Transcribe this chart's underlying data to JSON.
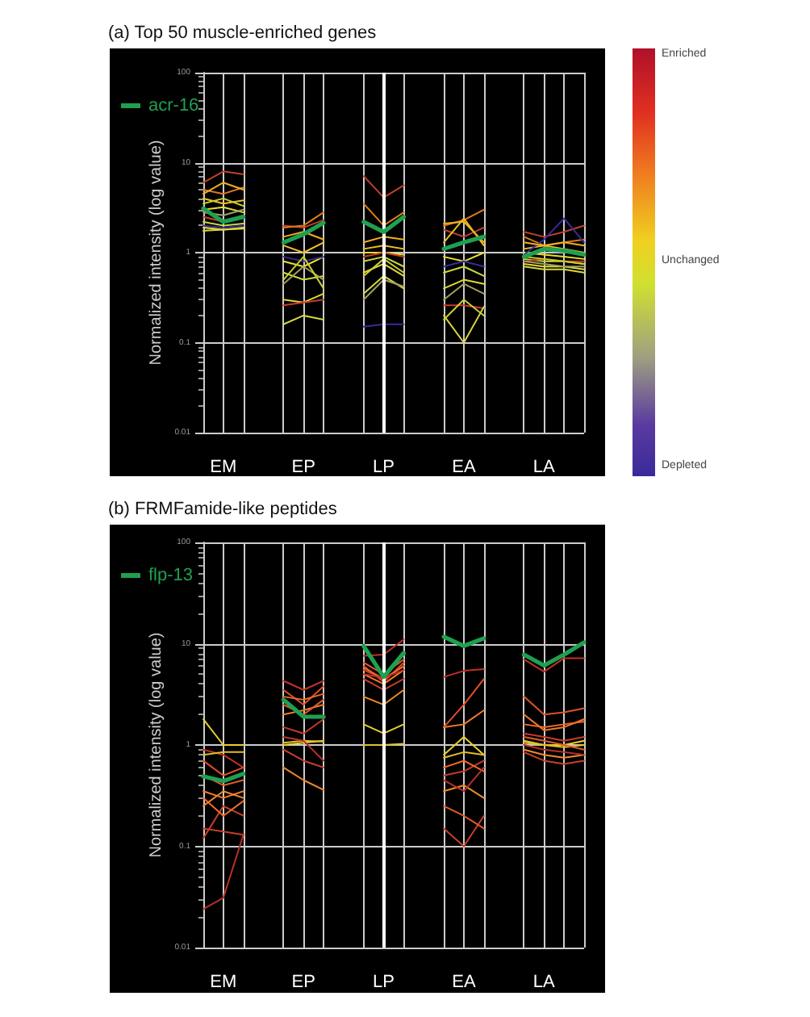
{
  "chart_data": [
    {
      "type": "line",
      "title": "(a) Top 50 muscle-enriched genes",
      "ylabel": "Normalized intensity (log value)",
      "categories": [
        null,
        "EM",
        null,
        null,
        null,
        "EP",
        null,
        null,
        null,
        "LP",
        null,
        null,
        null,
        "EA",
        null,
        null,
        null,
        "LA",
        null,
        null
      ],
      "log": "y",
      "ylim": [
        0.01,
        100
      ],
      "yticks": [
        0.01,
        0.1,
        1,
        10,
        100
      ],
      "grid": true,
      "legend": "top left",
      "marker": "none",
      "line_style": "solid",
      "ref_lines": [
        {
          "axis": "x",
          "value": "LP",
          "color": "#ffffff"
        }
      ],
      "annotations": [
        "Enriched",
        "Unchanged",
        "Depleted"
      ],
      "series": [
        {
          "color": "#c0402a",
          "values": [
            6,
            8,
            7.4,
            null,
            2,
            1.9,
            2.3,
            null,
            7.1,
            4.1,
            5.6,
            null,
            1.8,
            1.5,
            1.9,
            null,
            1.7,
            1.5,
            1.7,
            2
          ]
        },
        {
          "color": "#e07a20",
          "values": [
            5,
            4.5,
            5.3,
            null,
            1.9,
            2,
            2.8,
            null,
            3.5,
            2,
            2.8,
            null,
            2,
            2.3,
            3,
            null,
            1.5,
            1.2,
            1.3,
            1.4
          ]
        },
        {
          "color": "#f0c020",
          "values": [
            4,
            3.5,
            3.8,
            null,
            1.2,
            1,
            1.3,
            null,
            1.1,
            1.2,
            1.1,
            null,
            1.3,
            2.4,
            1.2,
            null,
            1.1,
            1.2,
            1.1,
            1
          ]
        },
        {
          "color": "#e8e030",
          "values": [
            3,
            3.2,
            2.8,
            null,
            0.8,
            0.7,
            0.9,
            null,
            1,
            1,
            0.95,
            null,
            0.9,
            0.8,
            1,
            null,
            1,
            0.95,
            0.9,
            0.85
          ]
        },
        {
          "color": "#c8d840",
          "values": [
            2.2,
            2,
            2.1,
            null,
            0.6,
            0.5,
            0.55,
            null,
            0.8,
            0.9,
            0.7,
            null,
            0.6,
            0.7,
            0.55,
            null,
            0.85,
            0.8,
            0.8,
            0.75
          ]
        },
        {
          "color": "#e0d838",
          "values": [
            1.9,
            1.8,
            1.9,
            null,
            0.3,
            0.28,
            0.35,
            null,
            0.6,
            0.75,
            0.55,
            null,
            0.4,
            0.5,
            0.45,
            null,
            0.75,
            0.7,
            0.7,
            0.65
          ]
        },
        {
          "color": "#c83c28",
          "values": [
            2.5,
            2.2,
            2.6,
            null,
            0.26,
            0.28,
            0.3,
            null,
            0.9,
            1,
            0.9,
            null,
            0.26,
            0.26,
            0.24,
            null,
            0.8,
            0.85,
            0.8,
            0.8
          ]
        },
        {
          "color": "#d8d840",
          "values": [
            1.75,
            1.8,
            1.85,
            null,
            0.16,
            0.2,
            0.18,
            null,
            0.35,
            0.55,
            0.4,
            null,
            0.2,
            0.1,
            0.25,
            null,
            0.7,
            0.65,
            0.65,
            0.6
          ]
        },
        {
          "color": "#3a2a9a",
          "values": [
            2,
            1.9,
            2,
            null,
            0.9,
            0.8,
            0.9,
            null,
            0.15,
            0.16,
            0.16,
            null,
            0.7,
            0.8,
            0.7,
            null,
            0.95,
            1.4,
            2.4,
            1.3
          ]
        },
        {
          "color": "#a0a060",
          "values": [
            2.8,
            2.6,
            3,
            null,
            0.45,
            0.7,
            0.5,
            null,
            0.3,
            0.5,
            0.42,
            null,
            0.3,
            0.45,
            0.35,
            null,
            0.8,
            0.75,
            0.7,
            0.7
          ]
        },
        {
          "color": "#c8d030",
          "values": [
            3.5,
            4,
            3.3,
            null,
            0.5,
            0.9,
            0.4,
            null,
            0.55,
            0.85,
            0.6,
            null,
            0.18,
            0.3,
            0.2,
            null,
            0.9,
            0.85,
            0.8,
            0.75
          ]
        },
        {
          "color": "#f0b020",
          "values": [
            4.5,
            6,
            5,
            null,
            1.5,
            1.7,
            1.4,
            null,
            1.3,
            1.5,
            1.4,
            null,
            2.1,
            2.2,
            1.3,
            null,
            1.3,
            1.2,
            1.3,
            1.2
          ]
        },
        {
          "name": "acr-16",
          "color": "#1ea050",
          "values": [
            3.1,
            2.2,
            2.5,
            null,
            1.3,
            1.6,
            2.15,
            null,
            2.2,
            1.7,
            2.5,
            null,
            1.1,
            1.3,
            1.5,
            null,
            0.9,
            1.1,
            1.05,
            0.95
          ]
        }
      ]
    },
    {
      "type": "line",
      "title": "(b) FRMFamide-like peptides",
      "ylabel": "Normalized intensity (log value)",
      "categories": [
        null,
        "EM",
        null,
        null,
        null,
        "EP",
        null,
        null,
        null,
        "LP",
        null,
        null,
        null,
        "EA",
        null,
        null,
        null,
        "LA",
        null,
        null
      ],
      "log": "y",
      "ylim": [
        0.01,
        100
      ],
      "yticks": [
        0.01,
        0.1,
        1,
        10,
        100
      ],
      "grid": true,
      "legend": "top left",
      "marker": "none",
      "line_style": "solid",
      "ref_lines": [
        {
          "axis": "x",
          "value": "LP",
          "color": "#ffffff"
        }
      ],
      "series": [
        {
          "color": "#c03028",
          "values": [
            0.9,
            0.8,
            0.6,
            null,
            4.3,
            3.5,
            4.3,
            null,
            7.6,
            7.8,
            11,
            null,
            4.7,
            5.4,
            5.6,
            null,
            7,
            5.3,
            7.2,
            7.2
          ]
        },
        {
          "color": "#e0502a",
          "values": [
            0.7,
            0.5,
            0.6,
            null,
            3.5,
            2.5,
            3.8,
            null,
            6,
            4.2,
            6.5,
            null,
            1.5,
            2.5,
            4.5,
            null,
            3,
            2,
            2.1,
            2.3
          ]
        },
        {
          "color": "#f07a2a",
          "values": [
            0.35,
            0.3,
            0.35,
            null,
            2,
            2.2,
            2.5,
            null,
            5,
            4,
            5.5,
            null,
            1.5,
            1.6,
            2.2,
            null,
            2,
            1.4,
            1.5,
            1.8
          ]
        },
        {
          "color": "#c83a2a",
          "values": [
            0.15,
            0.14,
            0.13,
            null,
            1.5,
            1.3,
            1.8,
            null,
            4.5,
            3.5,
            4.5,
            null,
            0.5,
            0.55,
            0.7,
            null,
            1.3,
            1.2,
            1.1,
            1.2
          ]
        },
        {
          "color": "#e8d030",
          "values": [
            1.8,
            1,
            1,
            null,
            1,
            1.05,
            1.1,
            null,
            1.6,
            1.3,
            1.6,
            null,
            0.8,
            1.2,
            0.8,
            null,
            1.1,
            1,
            1,
            1.1
          ]
        },
        {
          "color": "#e0c028",
          "values": [
            0.8,
            0.85,
            0.85,
            null,
            1.05,
            1.1,
            1.08,
            null,
            1,
            1,
            1.03,
            null,
            0.75,
            0.85,
            0.8,
            null,
            1.05,
            1,
            0.95,
            1
          ]
        },
        {
          "color": "#f08a2a",
          "values": [
            0.25,
            0.35,
            0.3,
            null,
            0.6,
            0.45,
            0.36,
            null,
            3,
            2.5,
            3.5,
            null,
            0.35,
            0.4,
            0.3,
            null,
            0.9,
            0.8,
            0.75,
            0.8
          ]
        },
        {
          "color": "#c8402a",
          "values": [
            0.12,
            0.25,
            0.2,
            null,
            0.9,
            0.7,
            0.6,
            null,
            5.5,
            4.5,
            6,
            null,
            0.15,
            0.1,
            0.2,
            null,
            0.85,
            0.7,
            0.65,
            0.7
          ]
        },
        {
          "color": "#e05a2a",
          "values": [
            0.5,
            0.4,
            0.45,
            null,
            2.5,
            2,
            2.8,
            null,
            6.5,
            5,
            7,
            null,
            0.25,
            0.2,
            0.15,
            null,
            1.2,
            1.1,
            1,
            0.9
          ]
        },
        {
          "color": "#f06a2a",
          "values": [
            0.3,
            0.2,
            0.28,
            null,
            3,
            2.8,
            3.2,
            null,
            5.8,
            4.5,
            6,
            null,
            0.6,
            0.7,
            0.55,
            null,
            1.6,
            1.5,
            1.6,
            1.7
          ]
        },
        {
          "color": "#b83028",
          "values": [
            0.024,
            0.031,
            0.13,
            null,
            1.2,
            1.1,
            0.7,
            null,
            5,
            4.6,
            5.5,
            null,
            0.45,
            0.35,
            0.6,
            null,
            1,
            0.9,
            0.85,
            0.8
          ]
        },
        {
          "name": "flp-13",
          "color": "#1ea050",
          "values": [
            0.49,
            0.44,
            0.52,
            null,
            2.8,
            1.9,
            1.9,
            null,
            9.5,
            4.7,
            8.1,
            null,
            11.7,
            9.5,
            11.3,
            null,
            7.8,
            6.1,
            7.8,
            10.3
          ]
        }
      ]
    }
  ]
}
